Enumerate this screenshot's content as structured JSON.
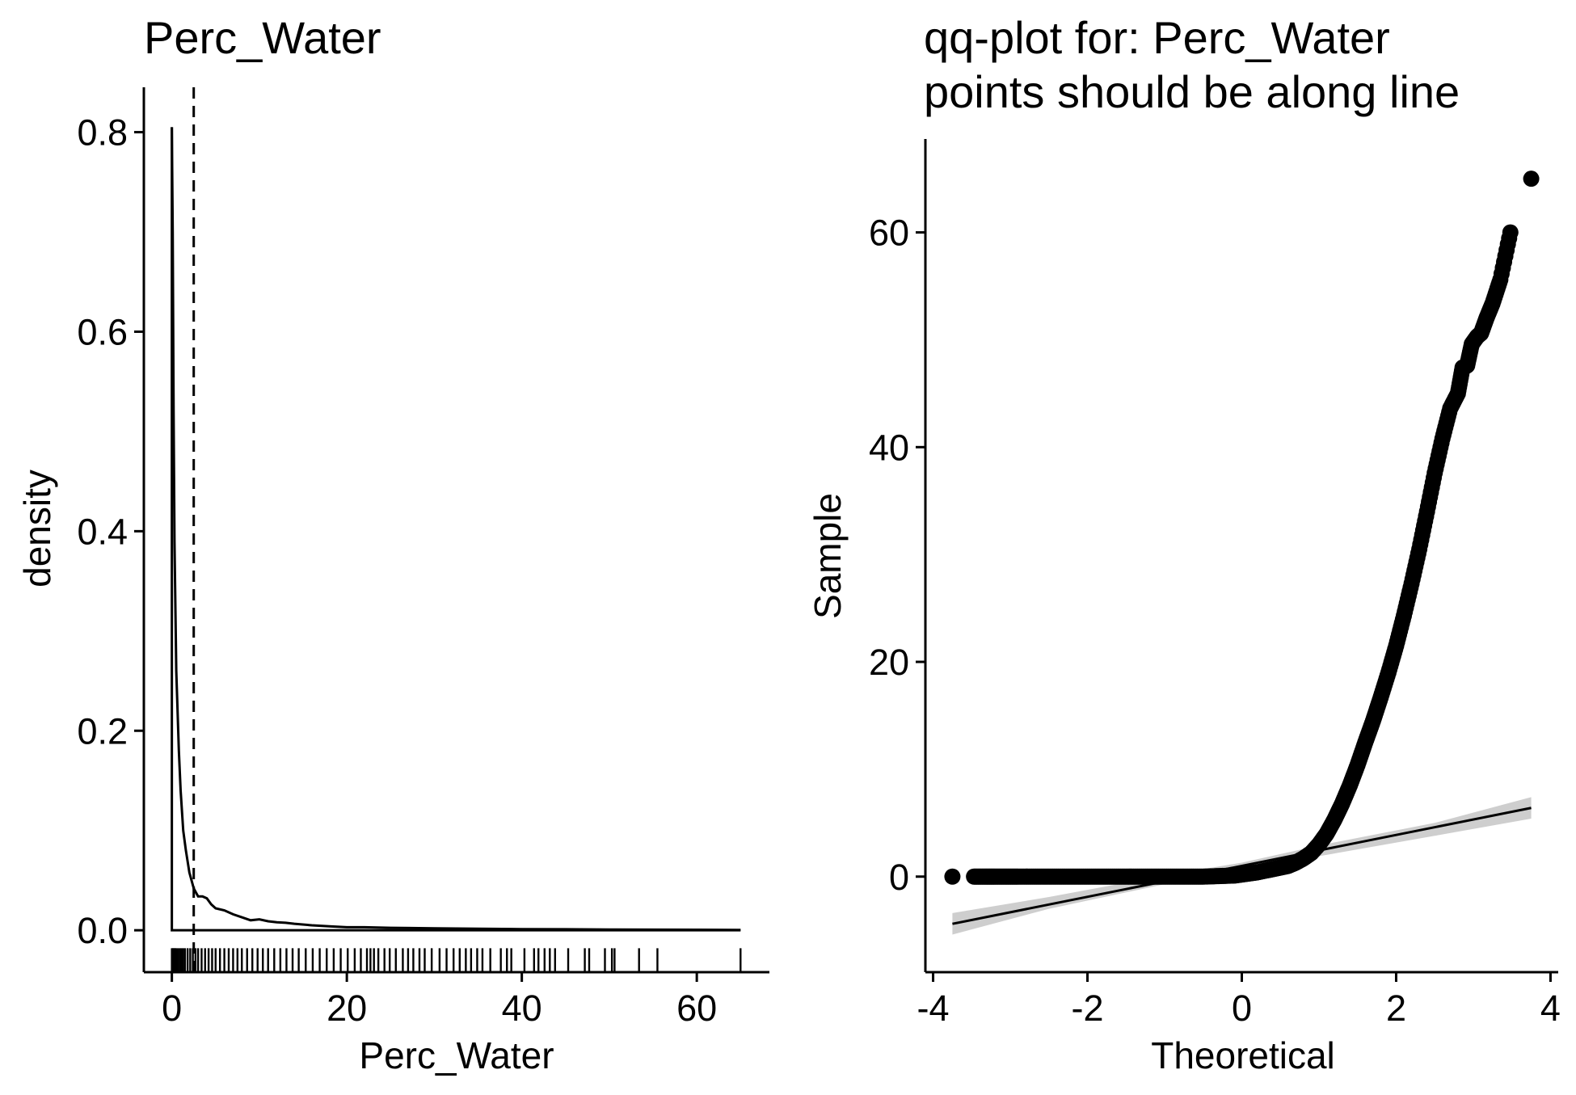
{
  "chart_data": [
    {
      "type": "density",
      "title": "Perc_Water",
      "xlabel": "Perc_Water",
      "ylabel": "density",
      "xlim": [
        -3.2,
        68.3
      ],
      "ylim": [
        -0.042,
        0.845
      ],
      "x_ticks": [
        0,
        20,
        40,
        60
      ],
      "x_tick_labels": [
        "0",
        "20",
        "40",
        "60"
      ],
      "y_ticks": [
        0.0,
        0.2,
        0.4,
        0.6,
        0.8
      ],
      "y_tick_labels": [
        "0.0",
        "0.2",
        "0.4",
        "0.6",
        "0.8"
      ],
      "grid": false,
      "legend": "none",
      "mean_line_x": 2.5,
      "density_curve": {
        "x": [
          0,
          0.1,
          0.2,
          0.3,
          0.5,
          0.8,
          1.0,
          1.3,
          1.6,
          2.0,
          2.5,
          3.0,
          3.5,
          4.0,
          4.5,
          5.0,
          6.0,
          7.0,
          8.0,
          9.0,
          10.0,
          11.0,
          12.0,
          13.0,
          14.0,
          16.0,
          18.0,
          20.0,
          22.0,
          25.0,
          30.0,
          35.0,
          40.0,
          45.0,
          50.0,
          55.0,
          60.0,
          65.0
        ],
        "y": [
          0.805,
          0.7,
          0.52,
          0.39,
          0.26,
          0.18,
          0.14,
          0.1,
          0.08,
          0.058,
          0.042,
          0.034,
          0.034,
          0.032,
          0.026,
          0.022,
          0.02,
          0.016,
          0.013,
          0.01,
          0.011,
          0.009,
          0.008,
          0.0075,
          0.0065,
          0.005,
          0.004,
          0.003,
          0.003,
          0.0025,
          0.002,
          0.0015,
          0.0012,
          0.001,
          0.0008,
          0.0006,
          0.0005,
          0.0004
        ]
      },
      "rug": [
        0.0,
        0.1,
        0.2,
        0.3,
        0.4,
        0.5,
        0.7,
        0.9,
        1.1,
        1.3,
        1.5,
        1.8,
        2.1,
        2.4,
        2.7,
        3.0,
        3.4,
        3.8,
        4.2,
        4.6,
        5.0,
        5.5,
        6.0,
        6.5,
        7.0,
        7.5,
        8.0,
        8.6,
        9.2,
        9.8,
        10.4,
        11.0,
        11.7,
        12.4,
        13.1,
        13.8,
        14.5,
        15.3,
        16.1,
        16.9,
        17.7,
        18.5,
        19.3,
        20.1,
        20.9,
        21.6,
        22.3,
        22.7,
        23.1,
        23.6,
        24.3,
        24.9,
        25.6,
        26.4,
        27.0,
        27.6,
        28.3,
        28.9,
        29.7,
        30.6,
        31.4,
        32.2,
        32.9,
        33.6,
        34.2,
        34.9,
        35.5,
        36.4,
        37.6,
        38.3,
        38.8,
        40.3,
        41.4,
        41.9,
        42.6,
        43.2,
        43.8,
        45.3,
        47.2,
        47.7,
        49.5,
        50.3,
        50.6,
        53.4,
        55.5,
        65.0
      ]
    },
    {
      "type": "scatter",
      "title": "qq-plot for: Perc_Water\npoints should be along line",
      "title_lines": [
        "qq-plot for: Perc_Water",
        "points should be along line"
      ],
      "xlabel": "Theoretical",
      "ylabel": "Sample",
      "xlim": [
        -4.1,
        4.1
      ],
      "ylim": [
        -8.9,
        68.7
      ],
      "x_ticks": [
        -4,
        -2,
        0,
        2,
        4
      ],
      "x_tick_labels": [
        "-4",
        "-2",
        "0",
        "2",
        "4"
      ],
      "y_ticks": [
        0,
        20,
        40,
        60
      ],
      "y_tick_labels": [
        "0",
        "20",
        "40",
        "60"
      ],
      "grid": false,
      "legend": "none",
      "points": {
        "x": [
          -3.75,
          -3.47,
          -3.33,
          -3.2,
          -3.05,
          -2.9,
          -2.7,
          -2.5,
          -2.3,
          -2.1,
          -1.9,
          -1.7,
          -1.5,
          -1.3,
          -1.1,
          -0.9,
          -0.7,
          -0.5,
          -0.3,
          -0.1,
          0.0,
          0.1,
          0.2,
          0.3,
          0.4,
          0.5,
          0.6,
          0.7,
          0.8,
          0.9,
          1.0,
          1.1,
          1.2,
          1.3,
          1.4,
          1.5,
          1.6,
          1.7,
          1.8,
          1.9,
          2.0,
          2.1,
          2.2,
          2.3,
          2.4,
          2.5,
          2.6,
          2.7,
          2.8,
          2.86,
          2.92,
          2.98,
          3.05,
          3.1,
          3.17,
          3.25,
          3.35,
          3.48,
          3.75
        ],
        "y": [
          0.0,
          0.0,
          0.0,
          0.0,
          0.0,
          0.0,
          0.0,
          0.0,
          0.0,
          0.0,
          0.0,
          0.0,
          0.0,
          0.0,
          0.0,
          0.0,
          0.0,
          0.0,
          0.05,
          0.1,
          0.2,
          0.3,
          0.4,
          0.55,
          0.7,
          0.85,
          1.0,
          1.3,
          1.7,
          2.2,
          3.0,
          4.0,
          5.3,
          6.8,
          8.5,
          10.4,
          12.5,
          14.5,
          16.7,
          19.0,
          21.5,
          24.3,
          27.3,
          30.5,
          34.0,
          37.6,
          40.8,
          43.6,
          45.0,
          47.4,
          47.6,
          49.6,
          50.3,
          50.6,
          52.0,
          53.4,
          55.6,
          60.0,
          65.0
        ]
      },
      "reference_line": {
        "x": [
          -3.75,
          3.75
        ],
        "y": [
          -4.4,
          6.4
        ]
      },
      "confidence_band": {
        "x": [
          -3.75,
          -2.5,
          -1.0,
          0.0,
          1.0,
          2.5,
          3.75
        ],
        "lower": [
          -5.4,
          -3.0,
          -0.7,
          0.7,
          1.9,
          3.8,
          5.4
        ],
        "upper": [
          -3.4,
          -1.9,
          0.1,
          1.3,
          2.9,
          5.0,
          7.4
        ]
      }
    }
  ]
}
